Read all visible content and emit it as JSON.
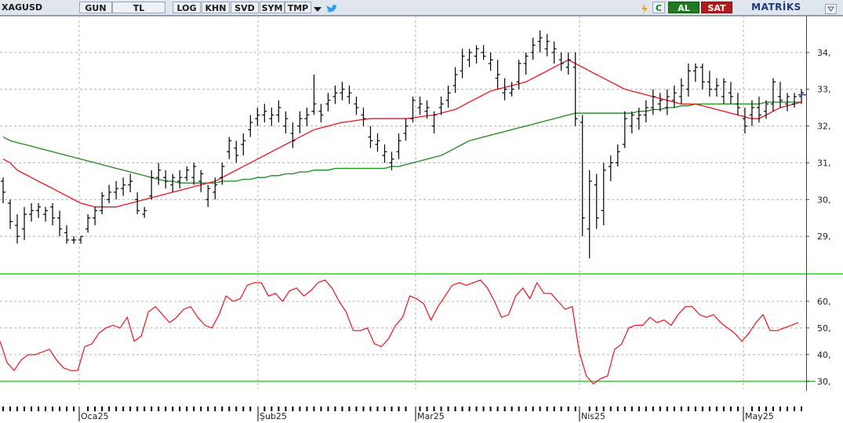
{
  "toolbar": {
    "symbol": "XAGUSD",
    "buttons": [
      "GUN",
      "TL",
      "LOG",
      "KHN",
      "SVD",
      "SYM",
      "TMP"
    ],
    "buy_label": "AL",
    "sell_label": "SAT",
    "brand": "MATRİKS",
    "refresh_label": "C",
    "icons": [
      "dropdown-arrow-icon",
      "twitter-bird-icon",
      "lightning-icon",
      "refresh-icon",
      "collapse-icon"
    ]
  },
  "colors": {
    "price_bars": "#000000",
    "ma_short": "#e8141b",
    "ma_long": "#1a8a1a",
    "rsi": "#e8141b",
    "panel_divider": "#2bd12b",
    "grid": "#b0b0b0",
    "last_price_marker": "#3a3aa8"
  },
  "chart_data": [
    {
      "type": "ohlc",
      "x_labels": [
        "Oca25",
        "Şub25",
        "Mar25",
        "Nis25",
        "May25"
      ],
      "ylim": [
        28,
        35
      ],
      "yticks": [
        29,
        30,
        31,
        32,
        33,
        34
      ],
      "grid": true,
      "bars": [
        [
          30.5,
          30.6,
          29.9,
          30.2
        ],
        [
          29.9,
          30.0,
          29.2,
          29.4
        ],
        [
          29.3,
          29.6,
          28.8,
          29.0
        ],
        [
          29.2,
          29.8,
          28.9,
          29.6
        ],
        [
          29.6,
          29.9,
          29.4,
          29.7
        ],
        [
          29.7,
          29.9,
          29.5,
          29.8
        ],
        [
          29.6,
          29.8,
          29.4,
          29.7
        ],
        [
          29.8,
          29.9,
          29.3,
          29.5
        ],
        [
          29.5,
          29.7,
          29.0,
          29.2
        ],
        [
          29.1,
          29.3,
          28.8,
          28.9
        ],
        [
          28.9,
          29.0,
          28.8,
          28.9
        ],
        [
          28.9,
          29.0,
          28.8,
          29.0
        ],
        [
          29.2,
          29.6,
          29.1,
          29.5
        ],
        [
          29.5,
          29.8,
          29.3,
          29.7
        ],
        [
          29.7,
          30.2,
          29.6,
          30.1
        ],
        [
          30.0,
          30.4,
          29.9,
          30.2
        ],
        [
          30.2,
          30.5,
          30.0,
          30.3
        ],
        [
          30.3,
          30.6,
          30.1,
          30.4
        ],
        [
          30.4,
          30.7,
          30.2,
          30.5
        ],
        [
          30.0,
          30.2,
          29.6,
          29.7
        ],
        [
          29.6,
          29.8,
          29.5,
          29.7
        ],
        [
          30.1,
          30.8,
          30.0,
          30.6
        ],
        [
          30.6,
          31.0,
          30.4,
          30.8
        ],
        [
          30.6,
          30.8,
          30.3,
          30.5
        ],
        [
          30.4,
          30.7,
          30.2,
          30.6
        ],
        [
          30.5,
          30.8,
          30.3,
          30.6
        ],
        [
          30.6,
          30.9,
          30.5,
          30.8
        ],
        [
          30.6,
          31.0,
          30.4,
          30.9
        ],
        [
          30.5,
          30.8,
          30.2,
          30.7
        ],
        [
          30.0,
          30.4,
          29.8,
          30.3
        ],
        [
          30.2,
          30.6,
          30.0,
          30.4
        ],
        [
          30.6,
          31.0,
          30.4,
          30.9
        ],
        [
          31.3,
          31.7,
          31.1,
          31.6
        ],
        [
          31.4,
          31.6,
          31.0,
          31.2
        ],
        [
          31.5,
          31.8,
          31.2,
          31.6
        ],
        [
          31.9,
          32.3,
          31.7,
          32.1
        ],
        [
          32.2,
          32.5,
          32.0,
          32.3
        ],
        [
          32.3,
          32.6,
          32.1,
          32.4
        ],
        [
          32.2,
          32.5,
          32.0,
          32.3
        ],
        [
          32.3,
          32.7,
          32.1,
          32.5
        ],
        [
          32.0,
          32.4,
          31.8,
          32.2
        ],
        [
          31.8,
          32.1,
          31.4,
          31.6
        ],
        [
          32.0,
          32.4,
          31.8,
          32.2
        ],
        [
          32.2,
          32.5,
          32.0,
          32.3
        ],
        [
          32.4,
          33.4,
          32.3,
          32.6
        ],
        [
          32.4,
          32.6,
          32.1,
          32.3
        ],
        [
          32.6,
          32.9,
          32.4,
          32.7
        ],
        [
          32.8,
          33.1,
          32.6,
          32.9
        ],
        [
          32.9,
          33.2,
          32.7,
          33.0
        ],
        [
          32.8,
          33.1,
          32.6,
          32.9
        ],
        [
          32.6,
          32.8,
          32.3,
          32.5
        ],
        [
          32.3,
          32.5,
          32.0,
          32.2
        ],
        [
          31.7,
          32.0,
          31.4,
          31.6
        ],
        [
          31.5,
          31.8,
          31.3,
          31.6
        ],
        [
          31.2,
          31.5,
          31.0,
          31.3
        ],
        [
          31.0,
          31.3,
          30.8,
          31.1
        ],
        [
          31.3,
          31.8,
          31.1,
          31.6
        ],
        [
          31.8,
          32.2,
          31.6,
          32.0
        ],
        [
          32.2,
          32.8,
          32.1,
          32.7
        ],
        [
          32.5,
          32.8,
          32.3,
          32.6
        ],
        [
          32.4,
          32.7,
          32.2,
          32.5
        ],
        [
          32.0,
          32.4,
          31.8,
          32.3
        ],
        [
          32.5,
          32.8,
          32.3,
          32.6
        ],
        [
          32.7,
          33.1,
          32.5,
          32.9
        ],
        [
          33.1,
          33.6,
          32.9,
          33.4
        ],
        [
          33.5,
          34.1,
          33.3,
          33.9
        ],
        [
          33.8,
          34.1,
          33.6,
          34.0
        ],
        [
          33.9,
          34.2,
          33.7,
          34.1
        ],
        [
          34.0,
          34.2,
          33.8,
          33.9
        ],
        [
          33.7,
          34.0,
          33.5,
          33.8
        ],
        [
          33.3,
          33.8,
          33.0,
          33.4
        ],
        [
          32.9,
          33.3,
          32.7,
          33.0
        ],
        [
          32.9,
          33.2,
          32.8,
          33.0
        ],
        [
          33.2,
          33.8,
          33.0,
          33.7
        ],
        [
          33.7,
          34.0,
          33.4,
          33.9
        ],
        [
          34.0,
          34.4,
          33.8,
          34.2
        ],
        [
          34.3,
          34.6,
          34.0,
          34.4
        ],
        [
          34.1,
          34.5,
          33.9,
          34.3
        ],
        [
          34.0,
          34.3,
          33.7,
          34.1
        ],
        [
          33.8,
          34.0,
          33.5,
          33.7
        ],
        [
          33.6,
          34.0,
          33.4,
          33.8
        ],
        [
          33.6,
          34.0,
          32.0,
          32.2
        ],
        [
          32.1,
          32.3,
          29.0,
          29.5
        ],
        [
          29.2,
          30.8,
          28.4,
          30.5
        ],
        [
          30.4,
          30.7,
          29.2,
          29.5
        ],
        [
          29.7,
          31.0,
          29.3,
          30.8
        ],
        [
          30.9,
          31.2,
          30.5,
          31.0
        ],
        [
          31.0,
          31.5,
          30.9,
          31.3
        ],
        [
          31.5,
          32.4,
          31.4,
          32.2
        ],
        [
          32.0,
          32.4,
          31.8,
          32.3
        ],
        [
          32.2,
          32.5,
          31.9,
          32.3
        ],
        [
          32.3,
          32.7,
          32.1,
          32.5
        ],
        [
          32.5,
          33.0,
          32.3,
          32.8
        ],
        [
          32.6,
          32.9,
          32.4,
          32.7
        ],
        [
          32.5,
          33.0,
          32.3,
          32.8
        ],
        [
          32.7,
          33.1,
          32.5,
          32.9
        ],
        [
          32.8,
          33.3,
          32.6,
          33.1
        ],
        [
          33.0,
          33.7,
          32.8,
          33.5
        ],
        [
          33.5,
          33.7,
          33.2,
          33.6
        ],
        [
          33.6,
          33.7,
          33.0,
          33.2
        ],
        [
          33.2,
          33.5,
          32.8,
          33.0
        ],
        [
          33.0,
          33.3,
          32.8,
          33.1
        ],
        [
          32.8,
          33.3,
          32.6,
          33.2
        ],
        [
          32.9,
          33.2,
          32.6,
          32.8
        ],
        [
          32.6,
          32.9,
          32.3,
          32.5
        ],
        [
          32.2,
          32.5,
          31.8,
          32.0
        ],
        [
          32.3,
          32.7,
          32.0,
          32.5
        ],
        [
          32.5,
          32.8,
          32.1,
          32.3
        ],
        [
          32.4,
          32.7,
          32.2,
          32.6
        ],
        [
          32.6,
          33.3,
          32.4,
          33.2
        ],
        [
          32.8,
          33.2,
          32.5,
          32.7
        ],
        [
          32.6,
          32.9,
          32.4,
          32.8
        ],
        [
          32.6,
          32.9,
          32.5,
          32.8
        ],
        [
          32.8,
          33.0,
          32.6,
          32.9
        ]
      ],
      "ma_short": [
        31.1,
        31.0,
        30.8,
        30.7,
        30.6,
        30.5,
        30.4,
        30.3,
        30.2,
        30.1,
        30.0,
        29.9,
        29.85,
        29.8,
        29.8,
        29.8,
        29.8,
        29.85,
        29.9,
        29.95,
        30.0,
        30.05,
        30.1,
        30.15,
        30.2,
        30.25,
        30.3,
        30.35,
        30.4,
        30.45,
        30.5,
        30.6,
        30.7,
        30.8,
        30.9,
        31.0,
        31.1,
        31.2,
        31.3,
        31.4,
        31.5,
        31.6,
        31.7,
        31.8,
        31.9,
        31.95,
        32.0,
        32.05,
        32.1,
        32.12,
        32.15,
        32.18,
        32.2,
        32.2,
        32.2,
        32.2,
        32.2,
        32.2,
        32.22,
        32.25,
        32.28,
        32.3,
        32.35,
        32.4,
        32.45,
        32.55,
        32.65,
        32.75,
        32.85,
        32.95,
        33.0,
        33.05,
        33.1,
        33.15,
        33.2,
        33.3,
        33.4,
        33.5,
        33.6,
        33.7,
        33.8,
        33.7,
        33.6,
        33.5,
        33.4,
        33.3,
        33.2,
        33.1,
        33.0,
        32.95,
        32.9,
        32.85,
        32.8,
        32.75,
        32.7,
        32.65,
        32.6,
        32.6,
        32.6,
        32.55,
        32.5,
        32.45,
        32.4,
        32.35,
        32.3,
        32.25,
        32.2,
        32.2,
        32.3,
        32.4,
        32.5,
        32.55,
        32.6,
        32.65
      ],
      "ma_long": [
        31.7,
        31.6,
        31.55,
        31.5,
        31.45,
        31.4,
        31.35,
        31.3,
        31.25,
        31.2,
        31.15,
        31.1,
        31.05,
        31.0,
        30.95,
        30.9,
        30.85,
        30.8,
        30.75,
        30.7,
        30.65,
        30.6,
        30.55,
        30.5,
        30.5,
        30.45,
        30.45,
        30.45,
        30.45,
        30.45,
        30.45,
        30.5,
        30.5,
        30.5,
        30.55,
        30.55,
        30.6,
        30.6,
        30.65,
        30.65,
        30.7,
        30.7,
        30.75,
        30.75,
        30.8,
        30.8,
        30.8,
        30.85,
        30.85,
        30.85,
        30.85,
        30.85,
        30.85,
        30.85,
        30.85,
        30.9,
        30.9,
        30.95,
        31.0,
        31.05,
        31.1,
        31.15,
        31.2,
        31.3,
        31.4,
        31.5,
        31.6,
        31.65,
        31.7,
        31.75,
        31.8,
        31.85,
        31.9,
        31.95,
        32.0,
        32.05,
        32.1,
        32.15,
        32.2,
        32.25,
        32.3,
        32.35,
        32.35,
        32.35,
        32.35,
        32.35,
        32.35,
        32.35,
        32.35,
        32.35,
        32.4,
        32.4,
        32.45,
        32.45,
        32.5,
        32.5,
        32.55,
        32.55,
        32.6,
        32.6,
        32.6,
        32.6,
        32.6,
        32.6,
        32.6,
        32.6,
        32.6,
        32.6,
        32.65,
        32.65,
        32.65,
        32.65,
        32.65,
        32.65
      ],
      "last_price": 32.85
    },
    {
      "type": "line",
      "ylim": [
        27,
        70
      ],
      "yticks": [
        30,
        40,
        50,
        60
      ],
      "threshold": 30,
      "grid": true,
      "values": [
        45,
        37,
        34,
        38,
        40,
        40,
        41,
        42,
        38,
        35,
        34,
        34,
        43,
        44,
        48,
        50,
        51,
        50,
        54,
        45,
        47,
        56,
        58,
        55,
        52,
        54,
        57,
        58,
        54,
        51,
        50,
        55,
        62,
        60,
        61,
        66,
        67,
        67,
        62,
        63,
        60,
        64,
        65,
        62,
        64,
        67,
        68,
        65,
        60,
        56,
        49,
        49,
        50,
        44,
        43,
        46,
        51,
        54,
        62,
        61,
        59,
        53,
        58,
        62,
        66,
        67,
        66,
        67,
        68,
        65,
        60,
        54,
        55,
        62,
        65,
        61,
        67,
        63,
        63,
        60,
        57,
        58,
        41,
        32,
        29,
        31,
        32,
        42,
        44,
        50,
        51,
        51,
        54,
        52,
        53,
        51,
        55,
        58,
        58,
        55,
        54,
        55,
        52,
        50,
        48,
        45,
        48,
        52,
        55,
        49,
        49,
        50,
        51,
        52
      ]
    }
  ]
}
